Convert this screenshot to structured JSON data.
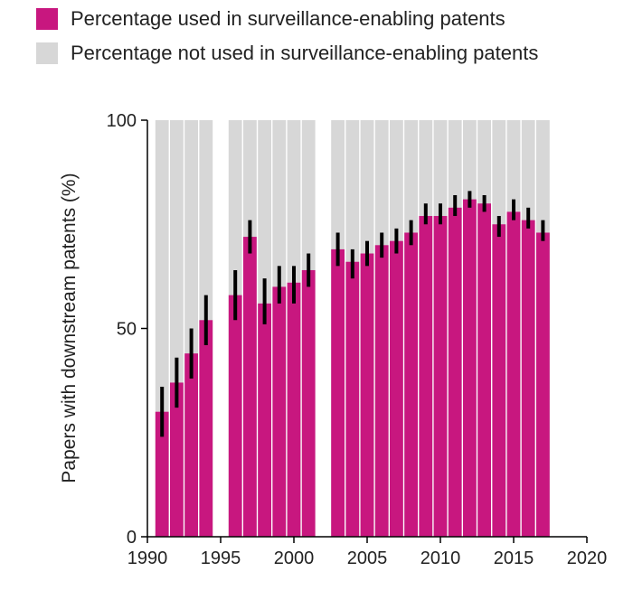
{
  "legend": {
    "used_label": "Percentage used in surveillance-enabling patents",
    "not_used_label": "Percentage not used in surveillance-enabling patents"
  },
  "chart_data": {
    "type": "bar",
    "stacked_to": 100,
    "title": "",
    "xlabel": "",
    "ylabel": "Papers with downstream patents (%)",
    "xlim": [
      1990,
      2020
    ],
    "ylim": [
      0,
      100
    ],
    "xticks": [
      "1990",
      "1995",
      "2000",
      "2005",
      "2010",
      "2015",
      "2020"
    ],
    "yticks": [
      "0",
      "50",
      "100"
    ],
    "grid": false,
    "legend_position": "top-left",
    "colors": {
      "used": "#c8177f",
      "not_used": "#d7d7d7",
      "error": "#000000"
    },
    "x": [
      1991,
      1992,
      1993,
      1994,
      1996,
      1997,
      1998,
      1999,
      2000,
      2001,
      2003,
      2004,
      2005,
      2006,
      2007,
      2008,
      2009,
      2010,
      2011,
      2012,
      2013,
      2014,
      2015,
      2016,
      2017
    ],
    "series": [
      {
        "name": "Percentage used in surveillance-enabling patents",
        "values": [
          30,
          37,
          44,
          52,
          58,
          72,
          56,
          60,
          61,
          64,
          69,
          66,
          68,
          70,
          71,
          73,
          77,
          77,
          79,
          81,
          80,
          75,
          78,
          76,
          73
        ],
        "error_low": [
          24,
          31,
          38,
          46,
          52,
          68,
          51,
          56,
          56,
          60,
          65,
          62,
          65,
          67,
          68,
          70,
          75,
          75,
          77,
          79,
          78,
          72,
          76,
          74,
          71
        ],
        "error_high": [
          36,
          43,
          50,
          58,
          64,
          76,
          62,
          65,
          65,
          68,
          73,
          69,
          71,
          73,
          74,
          76,
          80,
          80,
          82,
          83,
          82,
          77,
          81,
          79,
          76
        ]
      }
    ]
  }
}
